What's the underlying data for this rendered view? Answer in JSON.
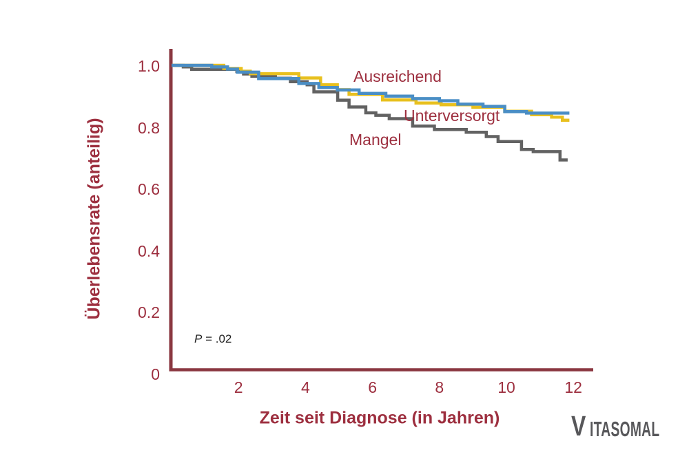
{
  "page": {
    "background": "#ffffff"
  },
  "chart_data": {
    "type": "line",
    "step": true,
    "subtype": "kaplan-meier-survival",
    "title": "",
    "xlabel": "Zeit seit Diagnose (in Jahren)",
    "ylabel": "Überlebensrate (anteilig)",
    "xlim": [
      0,
      12.6
    ],
    "ylim": [
      0,
      1.05
    ],
    "grid": false,
    "legend_position": "inline labels next to curves",
    "axis_color": "#8a3740",
    "tick_label_color": "#9d2f3f",
    "x_ticks": [
      {
        "label": "2",
        "value": 2
      },
      {
        "label": "4",
        "value": 4
      },
      {
        "label": "6",
        "value": 6
      },
      {
        "label": "8",
        "value": 8
      },
      {
        "label": "10",
        "value": 10
      },
      {
        "label": "12",
        "value": 12
      }
    ],
    "y_ticks": [
      {
        "label": "1.0",
        "value": 1.0
      },
      {
        "label": "0.8",
        "value": 0.8
      },
      {
        "label": "0.6",
        "value": 0.6
      },
      {
        "label": "0.4",
        "value": 0.4
      },
      {
        "label": "0.2",
        "value": 0.2
      },
      {
        "label": "0",
        "value": 0
      }
    ],
    "series": [
      {
        "name": "Ausreichend",
        "color": "#4a8ec5",
        "points": [
          [
            0,
            1.0
          ],
          [
            1.2,
            0.995
          ],
          [
            1.67,
            0.988
          ],
          [
            1.97,
            0.978
          ],
          [
            2.6,
            0.957
          ],
          [
            3.8,
            0.941
          ],
          [
            4.4,
            0.928
          ],
          [
            4.95,
            0.92
          ],
          [
            5.6,
            0.909
          ],
          [
            6.4,
            0.9
          ],
          [
            7.2,
            0.892
          ],
          [
            8.0,
            0.885
          ],
          [
            8.55,
            0.874
          ],
          [
            9.3,
            0.867
          ],
          [
            9.95,
            0.85
          ],
          [
            10.6,
            0.845
          ],
          [
            11.88,
            0.845
          ]
        ]
      },
      {
        "name": "Unterversorgt",
        "color": "#e8c01e",
        "points": [
          [
            0,
            1.0
          ],
          [
            1.56,
            0.99
          ],
          [
            2.08,
            0.981
          ],
          [
            2.35,
            0.973
          ],
          [
            3.8,
            0.959
          ],
          [
            4.45,
            0.937
          ],
          [
            4.95,
            0.921
          ],
          [
            5.3,
            0.906
          ],
          [
            6.3,
            0.888
          ],
          [
            7.3,
            0.878
          ],
          [
            8.05,
            0.872
          ],
          [
            9.0,
            0.864
          ],
          [
            9.95,
            0.851
          ],
          [
            10.75,
            0.84
          ],
          [
            11.35,
            0.832
          ],
          [
            11.67,
            0.822
          ],
          [
            11.88,
            0.822
          ]
        ]
      },
      {
        "name": "Mangel",
        "color": "#626262",
        "points": [
          [
            0,
            1.0
          ],
          [
            0.35,
            0.995
          ],
          [
            0.6,
            0.987
          ],
          [
            1.95,
            0.98
          ],
          [
            2.15,
            0.972
          ],
          [
            2.4,
            0.965
          ],
          [
            3.1,
            0.958
          ],
          [
            3.55,
            0.947
          ],
          [
            4.05,
            0.937
          ],
          [
            4.25,
            0.914
          ],
          [
            4.96,
            0.887
          ],
          [
            5.3,
            0.865
          ],
          [
            5.8,
            0.846
          ],
          [
            6.1,
            0.838
          ],
          [
            6.5,
            0.827
          ],
          [
            7.2,
            0.803
          ],
          [
            7.85,
            0.792
          ],
          [
            8.8,
            0.783
          ],
          [
            9.4,
            0.769
          ],
          [
            9.75,
            0.753
          ],
          [
            10.45,
            0.727
          ],
          [
            10.8,
            0.72
          ],
          [
            11.6,
            0.693
          ],
          [
            11.83,
            0.693
          ]
        ]
      }
    ],
    "annotation": {
      "p_symbol": "P",
      "p_rest": " = .02"
    }
  },
  "branding": {
    "logo_initial": "V",
    "logo_rest": "ITASOMAL",
    "color": "#57575a"
  }
}
